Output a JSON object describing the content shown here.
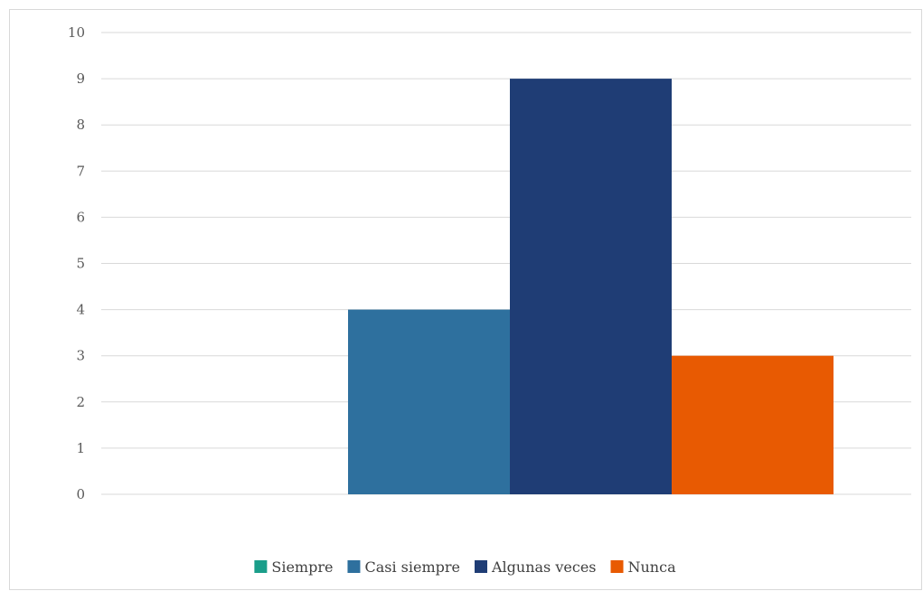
{
  "chart_data": {
    "type": "bar",
    "categories": [
      ""
    ],
    "series": [
      {
        "name": "Siempre",
        "values": [
          0
        ],
        "color": "#1a9e8a"
      },
      {
        "name": "Casi siempre",
        "values": [
          4
        ],
        "color": "#2e709e"
      },
      {
        "name": "Algunas veces",
        "values": [
          9
        ],
        "color": "#1f3d75"
      },
      {
        "name": "Nunca",
        "values": [
          3
        ],
        "color": "#e85a02"
      }
    ],
    "title": "",
    "xlabel": "",
    "ylabel": "",
    "ylim": [
      0,
      10
    ],
    "yticks": [
      "0",
      "1",
      "2",
      "3",
      "4",
      "5",
      "6",
      "7",
      "8",
      "9",
      "10"
    ],
    "grid": true,
    "gridColor": "#d9d9d9",
    "legend": "bottom"
  }
}
